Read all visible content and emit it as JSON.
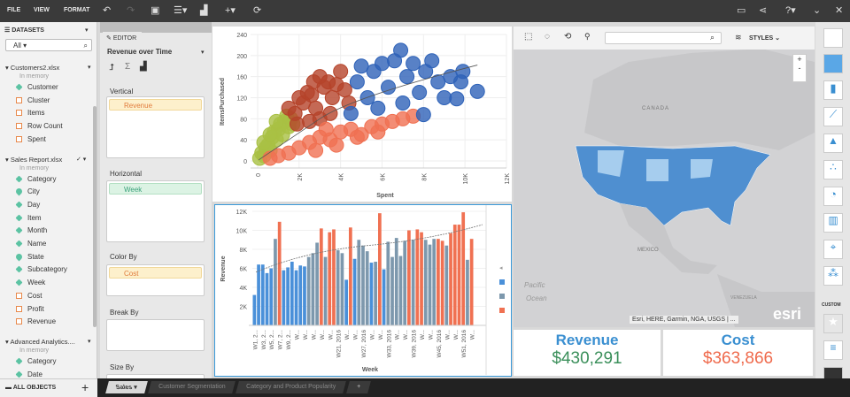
{
  "menu": {
    "file": "FILE",
    "view": "VIEW",
    "format": "FORMAT"
  },
  "toolbar_icons": [
    "undo-icon",
    "redo-icon",
    "save-icon",
    "add-data-icon",
    "add-chart-icon",
    "add-icon",
    "refresh-icon"
  ],
  "top_right_icons": [
    "presentation-icon",
    "share-icon",
    "help-icon",
    "chevron-down-icon",
    "close-icon"
  ],
  "datasets": {
    "title": "DATASETS",
    "filter": "All",
    "groups": [
      {
        "name": "Customers2.xlsx",
        "status": "In memory",
        "items": [
          {
            "label": "Customer",
            "type": "dim"
          },
          {
            "label": "Cluster",
            "type": "mea"
          },
          {
            "label": "Items",
            "type": "mea"
          },
          {
            "label": "Row Count",
            "type": "mea"
          },
          {
            "label": "Spent",
            "type": "mea"
          }
        ]
      },
      {
        "name": "Sales Report.xlsx",
        "status": "In memory",
        "items": [
          {
            "label": "Category",
            "type": "dim"
          },
          {
            "label": "City",
            "type": "geo"
          },
          {
            "label": "Day",
            "type": "dim"
          },
          {
            "label": "Item",
            "type": "dim"
          },
          {
            "label": "Month",
            "type": "dim"
          },
          {
            "label": "Name",
            "type": "dim"
          },
          {
            "label": "State",
            "type": "geo"
          },
          {
            "label": "Subcategory",
            "type": "dim"
          },
          {
            "label": "Week",
            "type": "dim"
          },
          {
            "label": "Cost",
            "type": "mea"
          },
          {
            "label": "Profit",
            "type": "mea"
          },
          {
            "label": "Revenue",
            "type": "mea"
          }
        ]
      },
      {
        "name": "Advanced Analytics....",
        "status": "In memory",
        "items": [
          {
            "label": "Category",
            "type": "dim"
          },
          {
            "label": "Date",
            "type": "dim"
          }
        ]
      }
    ],
    "all_objects": "ALL OBJECTS"
  },
  "editor": {
    "tab": "EDITOR",
    "viz_name": "Revenue over Time",
    "vertical_label": "Vertical",
    "vertical_item": "Revenue",
    "horizontal_label": "Horizontal",
    "horizontal_item": "Week",
    "color_label": "Color By",
    "color_item": "Cost",
    "break_label": "Break By",
    "size_label": "Size By"
  },
  "map": {
    "styles": "STYLES",
    "search_placeholder": "",
    "labels": {
      "canada": "CANADA",
      "mexico": "MEXICO",
      "pacific": "Pacific",
      "ocean": "Ocean",
      "venezuela": "VENEZUELA"
    },
    "attribution": "Esri, HERE, Garmin, NGA, USGS | ...",
    "logo": "esri",
    "zoom_in": "+",
    "zoom_out": "-"
  },
  "kpis": [
    {
      "label": "Revenue",
      "value": "$430,291",
      "color": "#3a8fd1",
      "value_color": "#3a8f5a"
    },
    {
      "label": "Cost",
      "value": "$363,866",
      "color": "#3a8fd1",
      "value_color": "#ef6a4c"
    }
  ],
  "right_tools": {
    "custom_label": "CUSTOM"
  },
  "sheet_tabs": [
    {
      "label": "Sales",
      "active": true
    },
    {
      "label": "Customer Segmentation"
    },
    {
      "label": "Category and Product Popularity"
    },
    {
      "label": "+"
    }
  ],
  "chart_data": [
    {
      "type": "scatter",
      "xlabel": "Spent",
      "ylabel": "ItemsPurchased",
      "xlim": [
        0,
        12000
      ],
      "ylim": [
        0,
        240
      ],
      "xticks": [
        "0",
        "2K",
        "4K",
        "6K",
        "8K",
        "10K",
        "12K"
      ],
      "yticks": [
        "0",
        "40",
        "80",
        "120",
        "160",
        "200",
        "240"
      ],
      "grid": true,
      "trendline": true,
      "series": [
        {
          "color": "#a9c043",
          "points": [
            [
              100,
              5
            ],
            [
              200,
              15
            ],
            [
              300,
              10
            ],
            [
              400,
              25
            ],
            [
              500,
              30
            ],
            [
              600,
              20
            ],
            [
              700,
              45
            ],
            [
              800,
              55
            ],
            [
              900,
              40
            ],
            [
              1000,
              60
            ],
            [
              1100,
              70
            ],
            [
              1200,
              50
            ],
            [
              1300,
              75
            ],
            [
              1400,
              85
            ],
            [
              1500,
              65
            ],
            [
              1600,
              80
            ],
            [
              1700,
              70
            ],
            [
              300,
              35
            ],
            [
              600,
              50
            ],
            [
              900,
              75
            ]
          ]
        },
        {
          "color": "#b5432a",
          "points": [
            [
              1500,
              100
            ],
            [
              1800,
              90
            ],
            [
              2000,
              120
            ],
            [
              2200,
              110
            ],
            [
              2400,
              130
            ],
            [
              2600,
              125
            ],
            [
              2800,
              100
            ],
            [
              3000,
              160
            ],
            [
              3200,
              140
            ],
            [
              3400,
              150
            ],
            [
              3600,
              120
            ],
            [
              3800,
              145
            ],
            [
              4000,
              170
            ],
            [
              4200,
              135
            ],
            [
              2500,
              75
            ],
            [
              3000,
              80
            ],
            [
              3500,
              90
            ],
            [
              1900,
              70
            ],
            [
              4400,
              110
            ],
            [
              2700,
              150
            ]
          ]
        },
        {
          "color": "#f07152",
          "points": [
            [
              600,
              5
            ],
            [
              1000,
              10
            ],
            [
              1500,
              15
            ],
            [
              2000,
              25
            ],
            [
              2500,
              35
            ],
            [
              3000,
              45
            ],
            [
              3500,
              40
            ],
            [
              4000,
              55
            ],
            [
              4500,
              60
            ],
            [
              5000,
              50
            ],
            [
              5500,
              65
            ],
            [
              6000,
              70
            ],
            [
              6500,
              75
            ],
            [
              7000,
              80
            ],
            [
              7500,
              85
            ],
            [
              2800,
              20
            ],
            [
              3800,
              30
            ],
            [
              4800,
              45
            ],
            [
              5800,
              55
            ],
            [
              3300,
              60
            ]
          ]
        },
        {
          "color": "#2e62b8",
          "points": [
            [
              4500,
              90
            ],
            [
              4800,
              150
            ],
            [
              5000,
              180
            ],
            [
              5300,
              120
            ],
            [
              5600,
              170
            ],
            [
              6000,
              185
            ],
            [
              6300,
              140
            ],
            [
              6600,
              190
            ],
            [
              6900,
              210
            ],
            [
              7200,
              160
            ],
            [
              7500,
              185
            ],
            [
              7800,
              130
            ],
            [
              8100,
              170
            ],
            [
              8400,
              190
            ],
            [
              8700,
              150
            ],
            [
              9000,
              120
            ],
            [
              9300,
              160
            ],
            [
              9600,
              118
            ],
            [
              9900,
              170
            ],
            [
              10600,
              132
            ],
            [
              5800,
              100
            ],
            [
              7000,
              110
            ],
            [
              8000,
              88
            ],
            [
              9800,
              150
            ]
          ]
        }
      ]
    },
    {
      "type": "bar",
      "xlabel": "Week",
      "ylabel": "Revenue",
      "ylim": [
        0,
        12000
      ],
      "yticks": [
        "2K",
        "4K",
        "6K",
        "8K",
        "10K",
        "12K"
      ],
      "trendline": true,
      "legend": "right",
      "color_scale": [
        "#4a90d9",
        "#7d98ad",
        "#f07152"
      ],
      "xtick_labels": [
        "W1, 2...",
        "W3, 2...",
        "W5, 2...",
        "W7, 2...",
        "W9, 2...",
        "W...",
        "W...",
        "W...",
        "W...",
        "W...",
        "W21, 2016",
        "W...",
        "W...",
        "W27, 2016",
        "W...",
        "W...",
        "W33, 2016",
        "W...",
        "W...",
        "W39, 2016",
        "W...",
        "W...",
        "W45, 2016",
        "W...",
        "W...",
        "W51, 2016",
        "W..."
      ],
      "values": [
        3200,
        6400,
        6400,
        5500,
        6000,
        9100,
        10900,
        5800,
        6100,
        6700,
        5800,
        6300,
        6200,
        7200,
        7600,
        8700,
        10200,
        7200,
        9800,
        10100,
        7900,
        7600,
        4800,
        10300,
        7000,
        9000,
        8400,
        7800,
        6600,
        6700,
        11800,
        5900,
        8800,
        7200,
        9200,
        7300,
        8900,
        10000,
        9000,
        10100,
        9800,
        9000,
        8500,
        9100,
        9100,
        8900,
        8400,
        9700,
        10600,
        10600,
        11900,
        6900,
        9100
      ],
      "color_class": [
        0,
        0,
        0,
        0,
        0,
        1,
        2,
        0,
        0,
        0,
        0,
        0,
        0,
        1,
        1,
        1,
        2,
        1,
        2,
        2,
        1,
        1,
        0,
        2,
        0,
        1,
        1,
        1,
        0,
        1,
        2,
        0,
        1,
        1,
        1,
        1,
        1,
        2,
        1,
        2,
        2,
        1,
        1,
        1,
        2,
        2,
        1,
        2,
        2,
        2,
        2,
        1,
        2
      ]
    }
  ]
}
